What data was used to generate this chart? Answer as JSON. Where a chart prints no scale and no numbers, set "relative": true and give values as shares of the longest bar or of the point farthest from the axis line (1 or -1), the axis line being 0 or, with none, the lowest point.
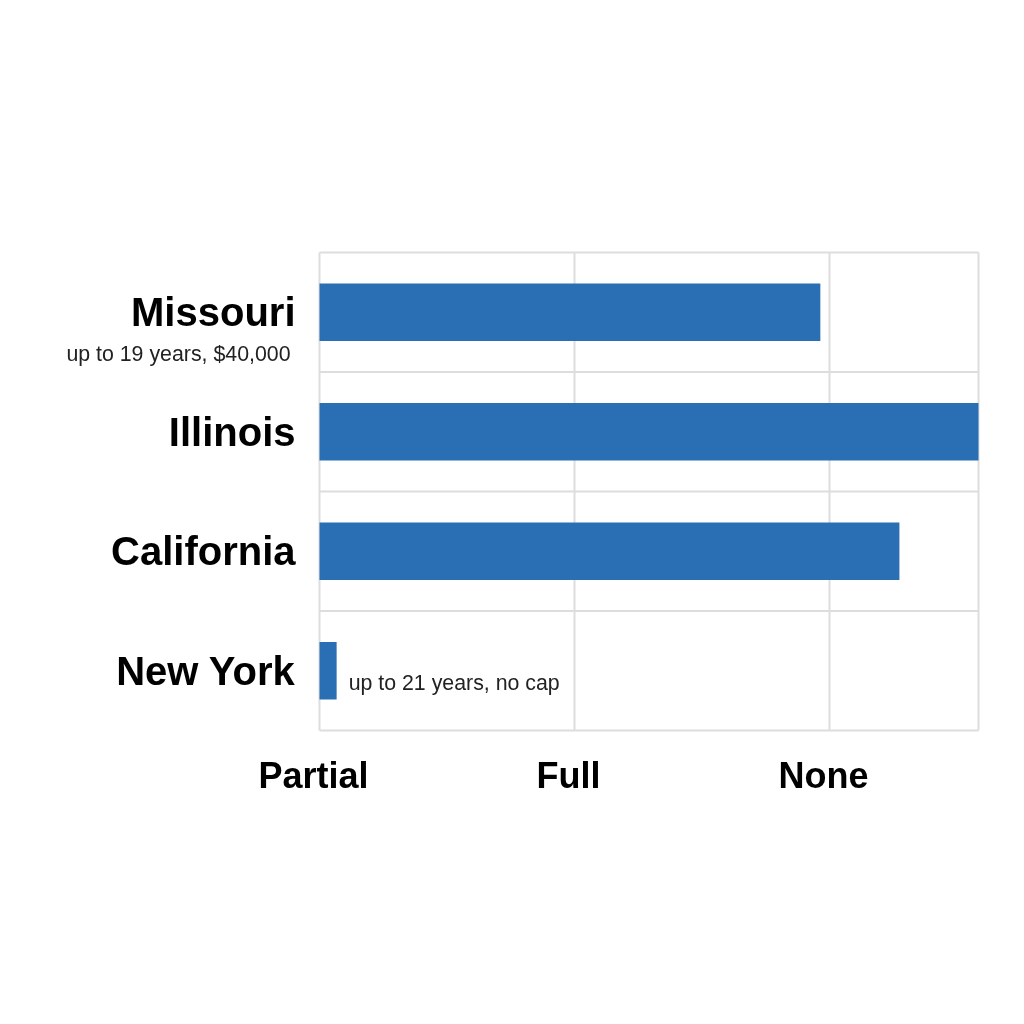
{
  "chart_data": {
    "type": "bar",
    "orientation": "horizontal",
    "relative": true,
    "categories": [
      "Missouri",
      "Illinois",
      "California",
      "New York"
    ],
    "values": [
      0.76,
      1,
      0.88,
      0.026
    ],
    "color": "#2a6fb3",
    "grid": true,
    "annotations": [
      "up to 19 years, $40,000",
      "Partial",
      "Full",
      "None",
      {
        "text": "up to 21 years, no cap",
        "x": 0.026,
        "y": "New York"
      }
    ]
  }
}
